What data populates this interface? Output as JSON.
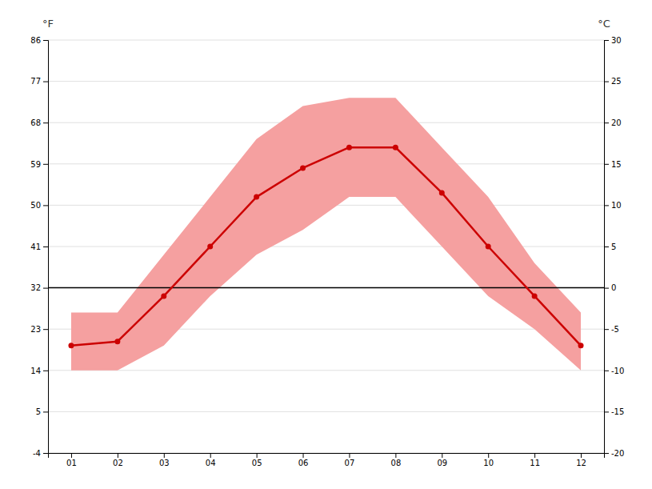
{
  "chart_data": {
    "type": "line",
    "categories": [
      "01",
      "02",
      "03",
      "04",
      "05",
      "06",
      "07",
      "08",
      "09",
      "10",
      "11",
      "12"
    ],
    "series": [
      {
        "type": "area",
        "color": "#f5a0a0",
        "low": [
          -10,
          -10,
          -7,
          -1,
          4,
          7,
          11,
          11,
          5,
          -1,
          -5,
          -10
        ],
        "high": [
          -3,
          -3,
          4,
          11,
          18,
          22,
          23,
          23,
          17,
          11,
          3,
          -3
        ]
      },
      {
        "type": "line",
        "color": "#cc0000",
        "marker": "circle",
        "values": [
          -7,
          -6.5,
          -1,
          5,
          11,
          14.5,
          17,
          17,
          11.5,
          5,
          -1,
          -7
        ]
      }
    ],
    "reference_lines": [
      {
        "value": 0,
        "color": "black"
      }
    ],
    "ylabel": "°C",
    "ylim": [
      -20,
      30
    ],
    "yticks": [
      -20,
      -15,
      -10,
      -5,
      0,
      5,
      10,
      15,
      20,
      25,
      30
    ],
    "y2label": "°F",
    "y2lim": [
      -4,
      86
    ],
    "y2ticks": [
      -4,
      5,
      14,
      23,
      32,
      41,
      50,
      59,
      68,
      77,
      86
    ],
    "grid": true
  }
}
